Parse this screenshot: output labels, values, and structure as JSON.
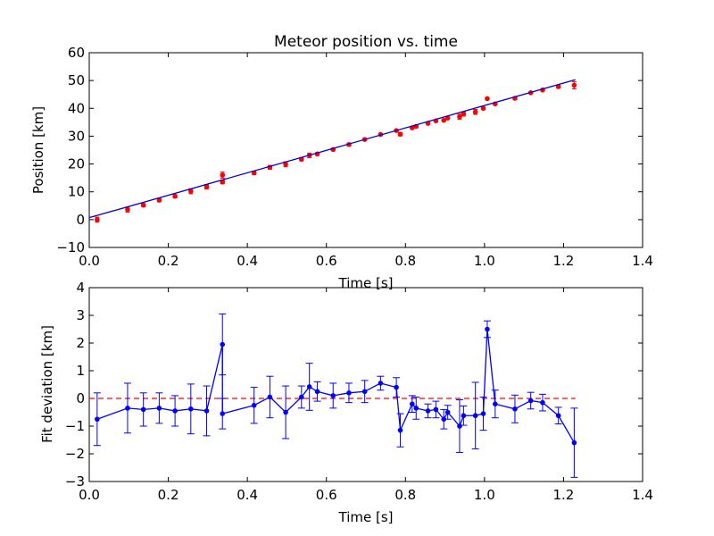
{
  "chart_data": [
    {
      "type": "scatter",
      "title": "Meteor position vs. time",
      "xlabel": "Time [s]",
      "ylabel": "Position [km]",
      "xlim": [
        0.0,
        1.4
      ],
      "ylim": [
        -10,
        60
      ],
      "xticks": [
        "0.0",
        "0.2",
        "0.4",
        "0.6",
        "0.8",
        "1.0",
        "1.2",
        "1.4"
      ],
      "yticks": [
        "−10",
        "0",
        "10",
        "20",
        "30",
        "40",
        "50",
        "60"
      ],
      "xtick_values": [
        0.0,
        0.2,
        0.4,
        0.6,
        0.8,
        1.0,
        1.2,
        1.4
      ],
      "ytick_values": [
        -10,
        0,
        10,
        20,
        30,
        40,
        50,
        60
      ],
      "series": [
        {
          "kind": "points_with_errorbars",
          "color": "#ff0000",
          "x": [
            0.02,
            0.097,
            0.137,
            0.177,
            0.217,
            0.257,
            0.297,
            0.337,
            0.337,
            0.417,
            0.457,
            0.497,
            0.537,
            0.557,
            0.577,
            0.617,
            0.657,
            0.697,
            0.737,
            0.777,
            0.787,
            0.817,
            0.827,
            0.857,
            0.877,
            0.897,
            0.907,
            0.937,
            0.947,
            0.977,
            0.997,
            1.007,
            1.027,
            1.077,
            1.117,
            1.147,
            1.187,
            1.227
          ],
          "y": [
            0.0,
            3.6,
            5.2,
            7.0,
            8.4,
            10.2,
            11.8,
            16.0,
            13.5,
            16.8,
            18.8,
            19.9,
            21.7,
            23.1,
            23.6,
            25.2,
            27.0,
            28.8,
            30.6,
            32.0,
            30.7,
            33.0,
            33.5,
            34.6,
            35.5,
            35.7,
            36.5,
            37.0,
            38.0,
            38.7,
            40.0,
            43.5,
            41.6,
            43.6,
            45.6,
            46.6,
            47.8,
            48.3
          ],
          "err": [
            0.9,
            0.9,
            0.6,
            0.6,
            0.6,
            0.9,
            0.8,
            1.1,
            0.6,
            0.6,
            0.7,
            0.9,
            0.6,
            0.8,
            0.5,
            0.4,
            0.5,
            0.4,
            0.3,
            0.3,
            0.6,
            0.3,
            0.3,
            0.3,
            0.3,
            0.3,
            0.3,
            0.9,
            0.8,
            0.9,
            0.4,
            0.3,
            0.4,
            0.5,
            0.3,
            0.3,
            0.5,
            1.3
          ]
        },
        {
          "kind": "line",
          "color": "#0000cc",
          "x": [
            0.0,
            1.23
          ],
          "y": [
            0.7,
            50.3
          ]
        }
      ]
    },
    {
      "type": "line",
      "xlabel": "Time [s]",
      "ylabel": "Fit deviation [km]",
      "xlim": [
        0.0,
        1.4
      ],
      "ylim": [
        -3,
        4
      ],
      "xticks": [
        "0.0",
        "0.2",
        "0.4",
        "0.6",
        "0.8",
        "1.0",
        "1.2",
        "1.4"
      ],
      "yticks": [
        "−3",
        "−2",
        "−1",
        "0",
        "1",
        "2",
        "3",
        "4"
      ],
      "xtick_values": [
        0.0,
        0.2,
        0.4,
        0.6,
        0.8,
        1.0,
        1.2,
        1.4
      ],
      "ytick_values": [
        -3,
        -2,
        -1,
        0,
        1,
        2,
        3,
        4
      ],
      "reference_line": {
        "y": 0,
        "color": "#ff0000",
        "style": "dashed",
        "x": [
          0.0,
          1.23
        ]
      },
      "series": [
        {
          "kind": "line_with_errorbars",
          "color": "#0000ff",
          "x": [
            0.02,
            0.097,
            0.137,
            0.177,
            0.217,
            0.257,
            0.297,
            0.337,
            0.337,
            0.417,
            0.457,
            0.497,
            0.537,
            0.557,
            0.577,
            0.617,
            0.657,
            0.697,
            0.737,
            0.777,
            0.787,
            0.817,
            0.827,
            0.857,
            0.877,
            0.897,
            0.907,
            0.937,
            0.947,
            0.977,
            0.997,
            1.007,
            1.027,
            1.077,
            1.117,
            1.147,
            1.187,
            1.227
          ],
          "y": [
            -0.75,
            -0.35,
            -0.4,
            -0.35,
            -0.45,
            -0.38,
            -0.45,
            1.95,
            -0.55,
            -0.25,
            0.05,
            -0.5,
            0.05,
            0.42,
            0.25,
            0.1,
            0.2,
            0.25,
            0.55,
            0.4,
            -1.15,
            -0.2,
            -0.35,
            -0.45,
            -0.4,
            -0.75,
            -0.5,
            -1.0,
            -0.62,
            -0.62,
            -0.55,
            2.5,
            -0.2,
            -0.38,
            -0.08,
            -0.15,
            -0.62,
            -1.6
          ],
          "err": [
            0.95,
            0.9,
            0.6,
            0.55,
            0.55,
            0.9,
            0.9,
            1.1,
            0.55,
            0.65,
            0.75,
            0.95,
            0.4,
            0.85,
            0.35,
            0.45,
            0.35,
            0.4,
            0.25,
            0.35,
            0.6,
            0.3,
            0.4,
            0.25,
            0.3,
            0.35,
            0.25,
            0.95,
            0.35,
            1.2,
            0.6,
            0.3,
            0.5,
            0.5,
            0.3,
            0.3,
            0.3,
            1.25
          ]
        }
      ]
    }
  ]
}
